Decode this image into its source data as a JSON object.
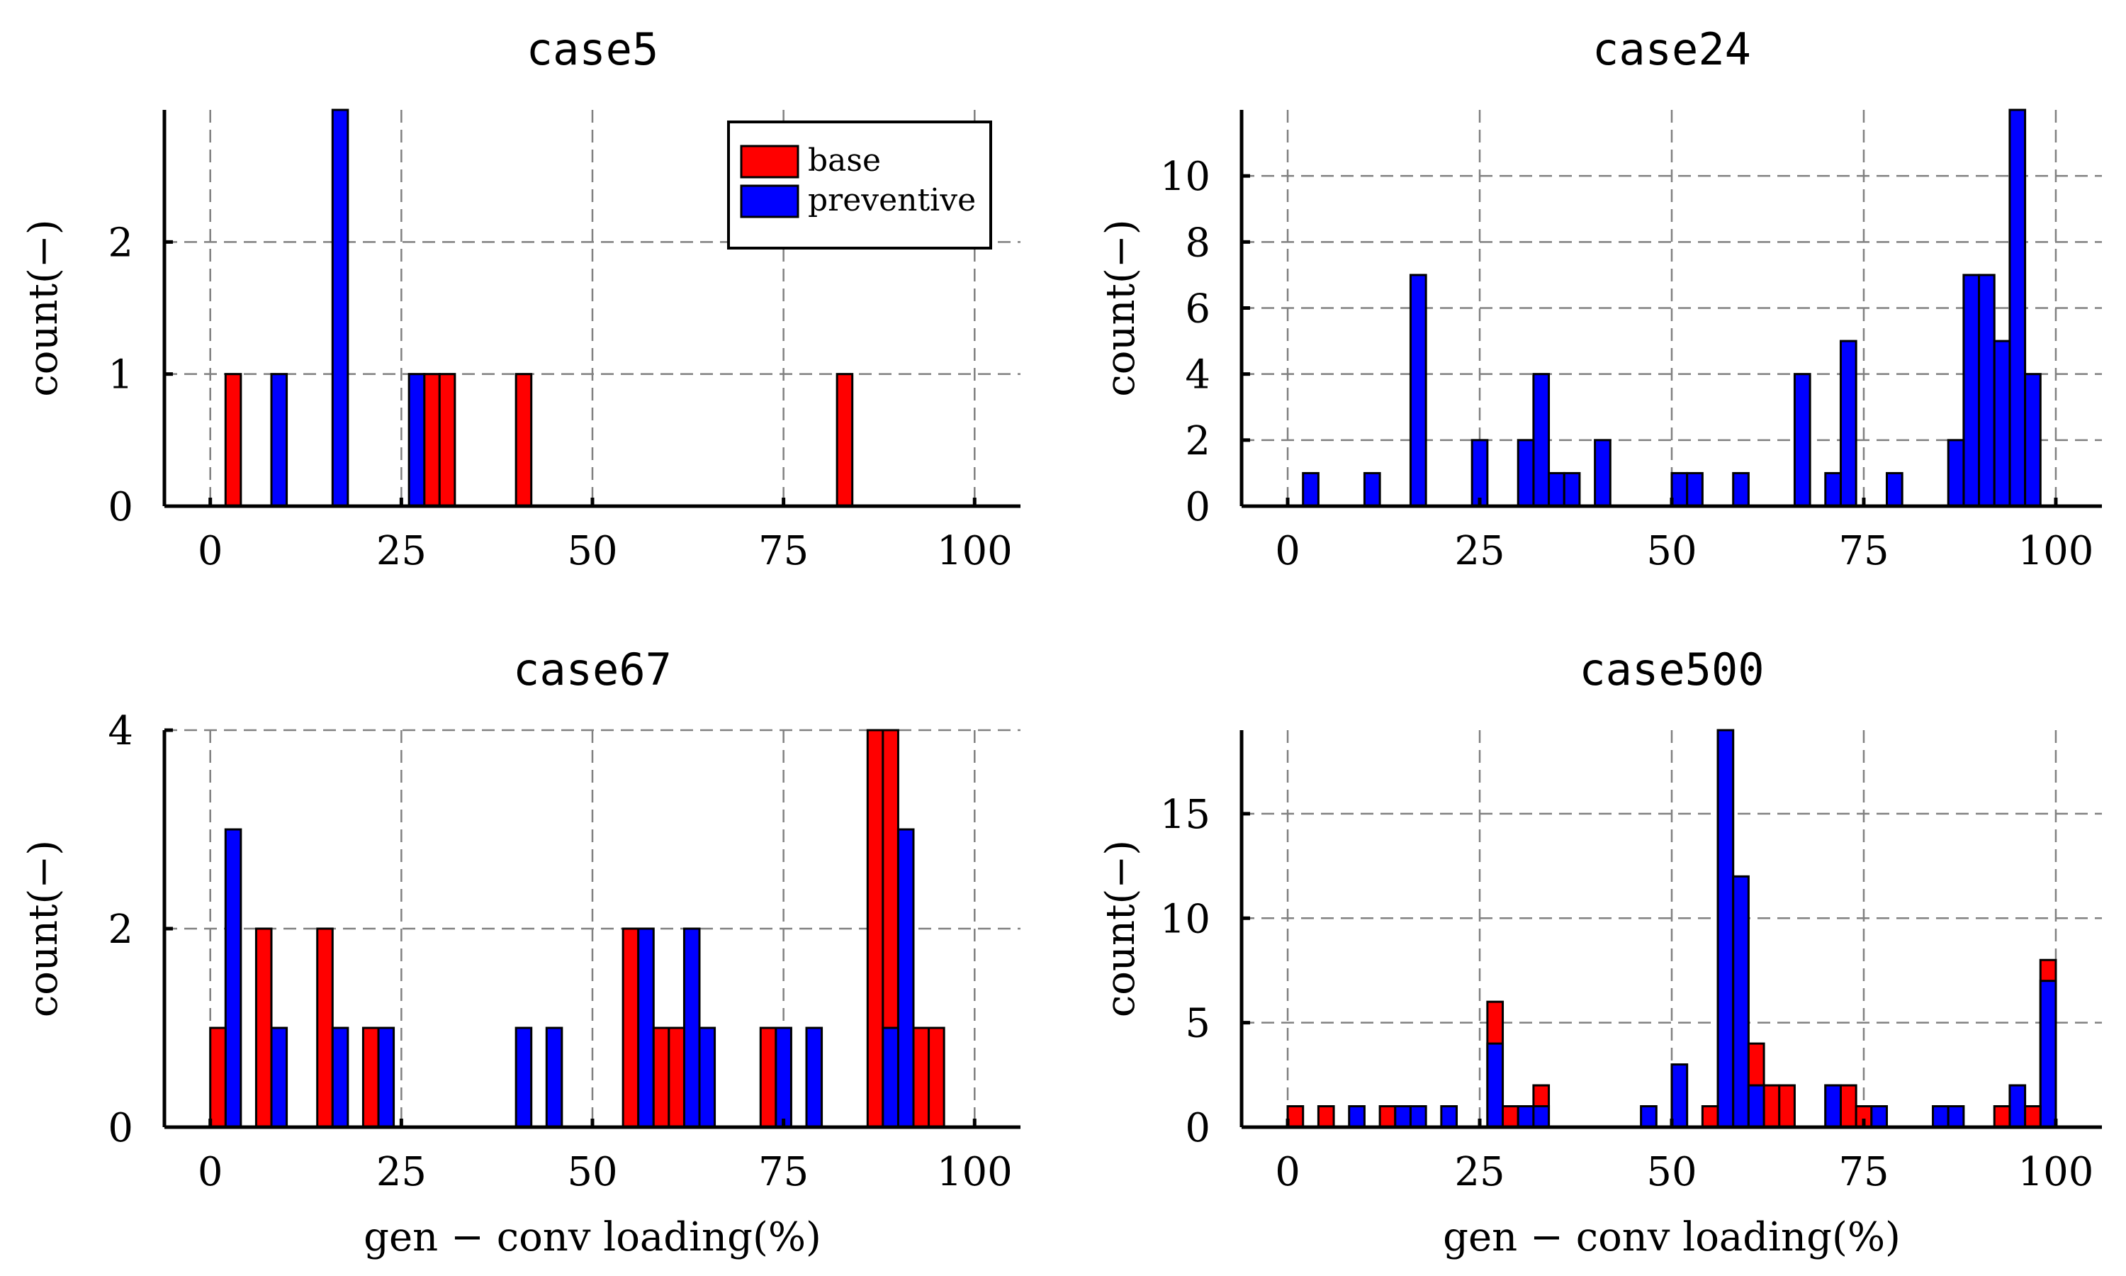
{
  "figure": {
    "legend_labels": [
      "base",
      "preventive"
    ]
  },
  "colors": {
    "base": "#ff0000",
    "preventive": "#0000ff"
  },
  "chart_data": [
    {
      "type": "bar",
      "title": "case5",
      "xlabel": "",
      "ylabel": "count(−)",
      "xlim": [
        -6,
        106
      ],
      "ylim": [
        0,
        3
      ],
      "xticks": [
        0,
        25,
        50,
        75,
        100
      ],
      "yticks": [
        0,
        1,
        2
      ],
      "bin_width": 2,
      "grid": true,
      "legend": "top-right",
      "series": [
        {
          "name": "base",
          "color": "#ff0000",
          "bins": [
            [
              3,
              1
            ],
            [
              29,
              1
            ],
            [
              31,
              1
            ],
            [
              41,
              1
            ],
            [
              83,
              1
            ]
          ]
        },
        {
          "name": "preventive",
          "color": "#0000ff",
          "bins": [
            [
              9,
              1
            ],
            [
              17,
              3
            ],
            [
              27,
              1
            ]
          ]
        }
      ]
    },
    {
      "type": "bar",
      "title": "case24",
      "xlabel": "",
      "ylabel": "count(−)",
      "xlim": [
        -6,
        106
      ],
      "ylim": [
        0,
        12
      ],
      "xticks": [
        0,
        25,
        50,
        75,
        100
      ],
      "yticks": [
        0,
        2,
        4,
        6,
        8,
        10
      ],
      "bin_width": 2,
      "grid": true,
      "series": [
        {
          "name": "preventive",
          "color": "#0000ff",
          "bins": [
            [
              3,
              1
            ],
            [
              11,
              1
            ],
            [
              17,
              7
            ],
            [
              25,
              2
            ],
            [
              31,
              2
            ],
            [
              33,
              4
            ],
            [
              35,
              1
            ],
            [
              37,
              1
            ],
            [
              41,
              2
            ],
            [
              51,
              1
            ],
            [
              53,
              1
            ],
            [
              59,
              1
            ],
            [
              67,
              4
            ],
            [
              71,
              1
            ],
            [
              73,
              5
            ],
            [
              79,
              1
            ],
            [
              87,
              2
            ],
            [
              89,
              7
            ],
            [
              91,
              7
            ],
            [
              93,
              5
            ],
            [
              95,
              12
            ],
            [
              97,
              4
            ]
          ]
        }
      ]
    },
    {
      "type": "bar",
      "title": "case67",
      "xlabel": "gen − conv loading(%)",
      "ylabel": "count(−)",
      "xlim": [
        -6,
        106
      ],
      "ylim": [
        0,
        4
      ],
      "xticks": [
        0,
        25,
        50,
        75,
        100
      ],
      "yticks": [
        0,
        2,
        4
      ],
      "bin_width": 2,
      "grid": true,
      "series": [
        {
          "name": "base",
          "color": "#ff0000",
          "bins": [
            [
              1,
              1
            ],
            [
              7,
              2
            ],
            [
              15,
              2
            ],
            [
              21,
              1
            ],
            [
              55,
              2
            ],
            [
              59,
              1
            ],
            [
              61,
              1
            ],
            [
              73,
              1
            ],
            [
              87,
              4
            ],
            [
              89,
              4
            ],
            [
              93,
              1
            ],
            [
              95,
              1
            ]
          ]
        },
        {
          "name": "preventive",
          "color": "#0000ff",
          "bins": [
            [
              3,
              3
            ],
            [
              9,
              1
            ],
            [
              17,
              1
            ],
            [
              23,
              1
            ],
            [
              41,
              1
            ],
            [
              45,
              1
            ],
            [
              57,
              2
            ],
            [
              63,
              2
            ],
            [
              65,
              1
            ],
            [
              75,
              1
            ],
            [
              79,
              1
            ],
            [
              89,
              1
            ],
            [
              91,
              3
            ]
          ]
        }
      ]
    },
    {
      "type": "bar",
      "title": "case500",
      "xlabel": "gen − conv loading(%)",
      "ylabel": "count(−)",
      "xlim": [
        -6,
        106
      ],
      "ylim": [
        0,
        19
      ],
      "xticks": [
        0,
        25,
        50,
        75,
        100
      ],
      "yticks": [
        0,
        5,
        10,
        15
      ],
      "bin_width": 2,
      "grid": true,
      "series": [
        {
          "name": "base",
          "color": "#ff0000",
          "bins": [
            [
              1,
              1
            ],
            [
              5,
              1
            ],
            [
              13,
              1
            ],
            [
              27,
              6
            ],
            [
              29,
              1
            ],
            [
              33,
              2
            ],
            [
              55,
              1
            ],
            [
              61,
              4
            ],
            [
              63,
              2
            ],
            [
              65,
              2
            ],
            [
              71,
              2
            ],
            [
              73,
              2
            ],
            [
              75,
              1
            ],
            [
              93,
              1
            ],
            [
              97,
              1
            ],
            [
              99,
              8
            ]
          ]
        },
        {
          "name": "preventive",
          "color": "#0000ff",
          "bins": [
            [
              9,
              1
            ],
            [
              15,
              1
            ],
            [
              17,
              1
            ],
            [
              21,
              1
            ],
            [
              27,
              4
            ],
            [
              31,
              1
            ],
            [
              33,
              1
            ],
            [
              47,
              1
            ],
            [
              51,
              3
            ],
            [
              57,
              19
            ],
            [
              59,
              12
            ],
            [
              61,
              2
            ],
            [
              71,
              2
            ],
            [
              77,
              1
            ],
            [
              85,
              1
            ],
            [
              87,
              1
            ],
            [
              95,
              2
            ],
            [
              99,
              7
            ]
          ]
        }
      ]
    }
  ]
}
